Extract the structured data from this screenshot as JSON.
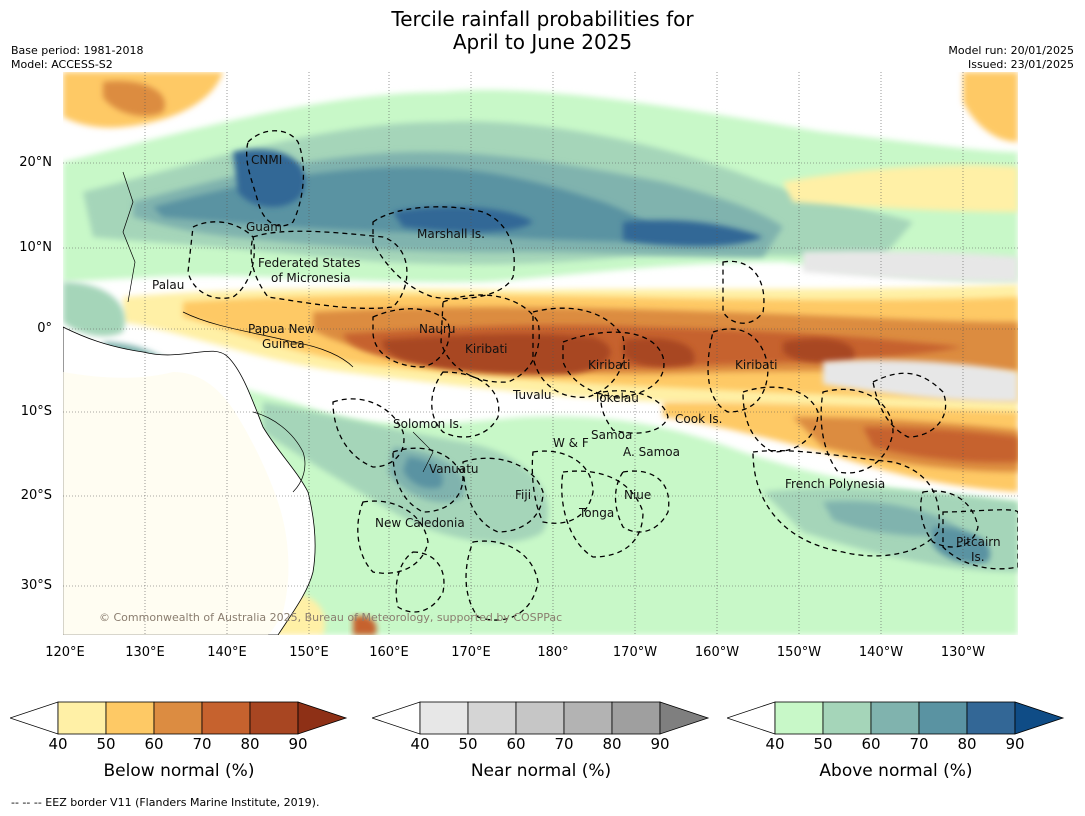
{
  "title": {
    "line1": "Tercile rainfall probabilities for",
    "line2": "April to June 2025"
  },
  "meta": {
    "base_period": "Base period: 1981-2018",
    "model": "Model: ACCESS-S2",
    "model_run": "Model run: 20/01/2025",
    "issued": "Issued: 23/01/2025"
  },
  "lat_labels": [
    "20°N",
    "10°N",
    "0°",
    "10°S",
    "20°S",
    "30°S"
  ],
  "lon_labels": [
    "120°E",
    "130°E",
    "140°E",
    "150°E",
    "160°E",
    "170°E",
    "180°",
    "170°W",
    "160°W",
    "150°W",
    "140°W",
    "130°W"
  ],
  "places": {
    "cnmi": "CNMI",
    "guam": "Guam",
    "marshall": "Marshall Is.",
    "fsm1": "Federated States",
    "fsm2": "of Micronesia",
    "palau": "Palau",
    "png1": "Papua New",
    "png2": "Guinea",
    "nauru": "Nauru",
    "kiribati_w": "Kiribati",
    "kiribati_c": "Kiribati",
    "kiribati_e": "Kiribati",
    "tuvalu": "Tuvalu",
    "tokelau": "Tokelau",
    "cook": "Cook Is.",
    "solomon": "Solomon Is.",
    "wf": "W & F",
    "samoa": "Samoa",
    "asamoa": "A. Samoa",
    "vanuatu": "Vanuatu",
    "fiji": "Fiji",
    "niue": "Niue",
    "tonga": "Tonga",
    "frpoly": "French Polynesia",
    "pitcairn1": "Pitcairn",
    "pitcairn2": "Is.",
    "newcal": "New Caledonia"
  },
  "copyright": "© Commonwealth of Australia 2025, Bureau of Meteorology, supported by COSPPac",
  "colorbars": [
    {
      "label": "Below normal (%)",
      "ticks": [
        "40",
        "50",
        "60",
        "70",
        "80",
        "90"
      ],
      "colors": [
        "#fff0a6",
        "#fec965",
        "#dc8c41",
        "#c6622e",
        "#a84622"
      ],
      "over": "#8e3016"
    },
    {
      "label": "Near normal (%)",
      "ticks": [
        "40",
        "50",
        "60",
        "70",
        "80",
        "90"
      ],
      "colors": [
        "#e7e7e7",
        "#d5d5d5",
        "#c6c6c6",
        "#b3b3b3",
        "#9f9f9f"
      ],
      "over": "#7f7f7f"
    },
    {
      "label": "Above normal (%)",
      "ticks": [
        "40",
        "50",
        "60",
        "70",
        "80",
        "90"
      ],
      "colors": [
        "#c8f8c8",
        "#a5d5b9",
        "#80b3ae",
        "#5a93a2",
        "#336796"
      ],
      "over": "#0f4c86"
    }
  ],
  "footnote": "--  --  -- EEZ border V11 (Flanders Marine Institute, 2019)."
}
